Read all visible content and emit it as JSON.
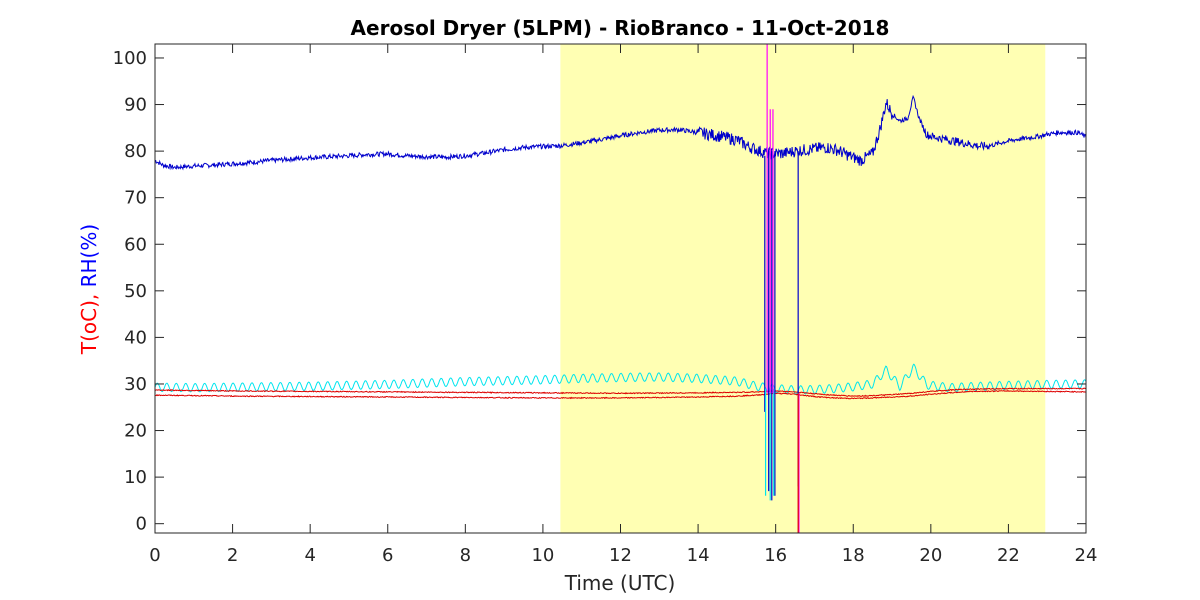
{
  "chart_data": {
    "type": "line",
    "title": "Aerosol Dryer (5LPM) - RioBranco - 11-Oct-2018",
    "xlabel": "Time (UTC)",
    "ylabel_parts": [
      {
        "text": "T(oC)",
        "color": "#ff0000"
      },
      {
        "text": ", ",
        "color": "#ff0000"
      },
      {
        "text": "RH(%)",
        "color": "#0000ff"
      }
    ],
    "xlim": [
      0,
      24
    ],
    "ylim": [
      -2,
      103
    ],
    "x_ticks": [
      0,
      2,
      4,
      6,
      8,
      10,
      12,
      14,
      16,
      18,
      20,
      22,
      24
    ],
    "y_ticks": [
      0,
      10,
      20,
      30,
      40,
      50,
      60,
      70,
      80,
      90,
      100
    ],
    "grid": false,
    "highlight_span": {
      "x0": 10.45,
      "x1": 22.95,
      "color": "#ffffb3"
    },
    "colors": {
      "rh": "#0000cc",
      "rh_inlet": "#00e5ee",
      "temp": "#dd0000",
      "spike": "#ff00ff"
    },
    "series": [
      {
        "color_key": "rh",
        "x": [
          0,
          0.2,
          0.5,
          1,
          1.5,
          2,
          2.5,
          3,
          3.5,
          4,
          4.5,
          5,
          5.5,
          6,
          6.5,
          7,
          7.5,
          8,
          8.5,
          9,
          9.5,
          10,
          10.5,
          11,
          11.5,
          12,
          12.5,
          13,
          13.5,
          14,
          14.5,
          15,
          15.3,
          15.6,
          15.8,
          16.0,
          16.2,
          16.5,
          16.8,
          17.0,
          17.3,
          17.6,
          17.9,
          18.2,
          18.5,
          18.7,
          18.85,
          19.0,
          19.2,
          19.4,
          19.55,
          19.7,
          19.9,
          20.1,
          20.4,
          20.7,
          21.0,
          21.3,
          21.6,
          21.9,
          22.2,
          22.5,
          22.8,
          23.0,
          23.3,
          23.6,
          23.8,
          24
        ],
        "y": [
          78,
          77,
          76.5,
          76.8,
          77,
          77.3,
          77.6,
          78,
          78.3,
          78.6,
          78.8,
          79,
          79.3,
          79.4,
          79,
          78.8,
          78.7,
          79,
          79.6,
          80.3,
          80.8,
          81,
          81.2,
          81.8,
          82.5,
          83.3,
          84,
          84.5,
          84.6,
          84,
          83.3,
          82.4,
          81,
          80,
          79.5,
          79.5,
          79.5,
          80,
          80.3,
          80.5,
          80.8,
          80.2,
          79,
          78,
          79.5,
          85,
          90.5,
          88,
          86.5,
          87,
          91.5,
          87,
          83.5,
          83,
          82.5,
          82,
          81.5,
          81,
          81.3,
          82,
          82.5,
          82.8,
          83.2,
          83.6,
          84,
          84,
          84,
          83
        ]
      },
      {
        "color_key": "rh_inlet",
        "x": [
          0,
          1,
          2,
          3,
          4,
          5,
          6,
          7,
          8,
          9,
          10,
          11,
          12,
          13,
          14,
          15,
          15.5,
          16,
          16.5,
          17,
          17.5,
          18,
          18.5,
          18.85,
          19.2,
          19.55,
          19.9,
          20.5,
          21,
          22,
          23,
          24
        ],
        "y": [
          29.3,
          29.2,
          29.3,
          29.4,
          29.5,
          29.7,
          29.9,
          30.2,
          30.5,
          30.7,
          30.9,
          31.2,
          31.4,
          31.5,
          31.2,
          30.6,
          29.5,
          29,
          28.7,
          28.8,
          29,
          29.4,
          30,
          33,
          29.5,
          33.5,
          29.8,
          29.2,
          29.4,
          29.7,
          29.9,
          30
        ]
      },
      {
        "color_key": "temp",
        "x": [
          0,
          2,
          4,
          6,
          8,
          10,
          12,
          14,
          15,
          15.5,
          16,
          16.5,
          17,
          17.5,
          18,
          18.5,
          19,
          19.5,
          20,
          20.5,
          21,
          22,
          23,
          24
        ],
        "y": [
          27.6,
          27.4,
          27.3,
          27.2,
          27.1,
          27.0,
          27.0,
          27.2,
          27.4,
          27.6,
          28,
          27.8,
          27.3,
          27,
          26.9,
          27,
          27.2,
          27.4,
          27.8,
          28.1,
          28.4,
          28.5,
          28.4,
          28.3
        ]
      },
      {
        "color_key": "temp",
        "x": [
          0,
          2,
          4,
          6,
          8,
          10,
          12,
          14,
          15,
          15.5,
          16,
          16.5,
          17,
          17.5,
          18,
          18.5,
          19,
          19.5,
          20,
          20.5,
          21,
          22,
          23,
          24
        ],
        "y": [
          28.7,
          28.5,
          28.4,
          28.3,
          28.2,
          28.1,
          28.0,
          28.1,
          28.2,
          28.3,
          28.5,
          28.3,
          27.9,
          27.6,
          27.4,
          27.5,
          27.7,
          28.0,
          28.4,
          28.7,
          28.9,
          29.0,
          29.0,
          29.0
        ]
      }
    ],
    "drops": [
      {
        "color_key": "rh",
        "x": 15.72,
        "y_from": 79,
        "y_to": 24
      },
      {
        "color_key": "rh",
        "x": 15.82,
        "y_from": 80,
        "y_to": 7
      },
      {
        "color_key": "rh",
        "x": 15.9,
        "y_from": 80,
        "y_to": 5
      },
      {
        "color_key": "rh",
        "x": 15.98,
        "y_from": 80,
        "y_to": 6
      },
      {
        "color_key": "rh",
        "x": 16.58,
        "y_from": 80,
        "y_to": 8
      },
      {
        "color_key": "rh_inlet",
        "x": 15.74,
        "y_from": 29,
        "y_to": 6
      },
      {
        "color_key": "rh_inlet",
        "x": 15.86,
        "y_from": 29,
        "y_to": 5
      },
      {
        "color_key": "rh_inlet",
        "x": 15.95,
        "y_from": 29,
        "y_to": 6
      },
      {
        "color_key": "spike",
        "x": 15.78,
        "y_from": 103,
        "y_to": 28
      },
      {
        "color_key": "spike",
        "x": 15.86,
        "y_from": 89,
        "y_to": 28
      },
      {
        "color_key": "spike",
        "x": 15.93,
        "y_from": 89,
        "y_to": 28
      },
      {
        "color_key": "spike",
        "x": 16.6,
        "y_from": 28,
        "y_to": -2
      },
      {
        "color_key": "temp",
        "x": 16.58,
        "y_from": 28,
        "y_to": -2
      }
    ]
  }
}
